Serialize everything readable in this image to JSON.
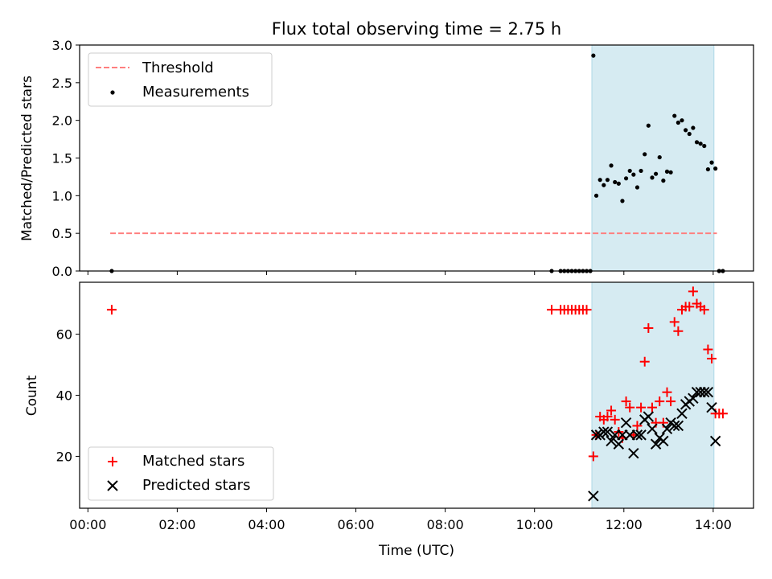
{
  "title": "Flux total observing time = 2.75 h",
  "colors": {
    "span": "#add8e6",
    "threshold": "#ff7f7f",
    "measurement": "#000000",
    "matched": "#ff0000",
    "predicted": "#000000"
  },
  "chart_data": [
    {
      "type": "scatter",
      "ylabel": "Matched/Predicted stars",
      "xlim": [
        "00:00",
        "15:00"
      ],
      "ylim": [
        0,
        3.0
      ],
      "yticks": [
        "0.0",
        "0.5",
        "1.0",
        "1.5",
        "2.0",
        "2.5",
        "3.0"
      ],
      "highlight_span": [
        "11:17",
        "14:01"
      ],
      "threshold": {
        "name": "Threshold",
        "value": 0.5,
        "x_range": [
          "00:30",
          "14:05"
        ]
      },
      "legend": {
        "placement": "upper-left",
        "entries": [
          "Threshold",
          "Measurements"
        ]
      },
      "series": [
        {
          "name": "Measurements",
          "x": [
            "00:32",
            "10:23",
            "10:35",
            "10:40",
            "10:45",
            "10:50",
            "10:55",
            "11:00",
            "11:05",
            "11:10",
            "11:15",
            "11:19",
            "11:23",
            "11:28",
            "11:33",
            "11:38",
            "11:43",
            "11:48",
            "11:53",
            "11:58",
            "12:03",
            "12:08",
            "12:13",
            "12:18",
            "12:23",
            "12:28",
            "12:33",
            "12:38",
            "12:43",
            "12:48",
            "12:53",
            "12:58",
            "13:03",
            "13:08",
            "13:13",
            "13:18",
            "13:23",
            "13:28",
            "13:33",
            "13:38",
            "13:43",
            "13:48",
            "13:53",
            "13:58",
            "14:03",
            "14:08",
            "14:13"
          ],
          "y": [
            0.0,
            0.0,
            0.0,
            0.0,
            0.0,
            0.0,
            0.0,
            0.0,
            0.0,
            0.0,
            0.0,
            2.86,
            1.0,
            1.21,
            1.14,
            1.21,
            1.4,
            1.18,
            1.16,
            0.93,
            1.23,
            1.33,
            1.28,
            1.11,
            1.33,
            1.55,
            1.93,
            1.24,
            1.29,
            1.51,
            1.2,
            1.32,
            1.31,
            2.06,
            1.97,
            2.0,
            1.87,
            1.82,
            1.9,
            1.71,
            1.69,
            1.66,
            1.35,
            1.44,
            1.36,
            0.0,
            0.0
          ]
        }
      ]
    },
    {
      "type": "scatter",
      "xlabel": "Time (UTC)",
      "ylabel": "Count",
      "xlim": [
        "00:00",
        "15:00"
      ],
      "ylim": [
        3,
        77
      ],
      "xticks": [
        "00:00",
        "02:00",
        "04:00",
        "06:00",
        "08:00",
        "10:00",
        "12:00",
        "14:00"
      ],
      "yticks": [
        "20",
        "40",
        "60"
      ],
      "highlight_span": [
        "11:17",
        "14:01"
      ],
      "legend": {
        "placement": "lower-left",
        "entries": [
          "Matched stars",
          "Predicted stars"
        ]
      },
      "series": [
        {
          "name": "Matched stars",
          "marker": "plus",
          "x": [
            "00:32",
            "10:23",
            "10:35",
            "10:40",
            "10:45",
            "10:50",
            "10:55",
            "11:00",
            "11:05",
            "11:10",
            "11:19",
            "11:23",
            "11:28",
            "11:33",
            "11:38",
            "11:43",
            "11:48",
            "11:53",
            "11:58",
            "12:03",
            "12:08",
            "12:13",
            "12:18",
            "12:23",
            "12:28",
            "12:33",
            "12:38",
            "12:43",
            "12:48",
            "12:53",
            "12:58",
            "13:03",
            "13:08",
            "13:13",
            "13:18",
            "13:23",
            "13:28",
            "13:33",
            "13:38",
            "13:43",
            "13:48",
            "13:53",
            "13:58",
            "14:03",
            "14:08",
            "14:13"
          ],
          "y": [
            68,
            68,
            68,
            68,
            68,
            68,
            68,
            68,
            68,
            68,
            20,
            27,
            33,
            32,
            33,
            35,
            32,
            28,
            26,
            38,
            36,
            27,
            30,
            36,
            51,
            62,
            36,
            31,
            38,
            31,
            41,
            38,
            64,
            61,
            68,
            69,
            69,
            74,
            70,
            69,
            68,
            55,
            52,
            34,
            34,
            34
          ]
        },
        {
          "name": "Predicted stars",
          "marker": "x",
          "x": [
            "11:19",
            "11:23",
            "11:28",
            "11:33",
            "11:38",
            "11:43",
            "11:48",
            "11:53",
            "11:58",
            "12:03",
            "12:08",
            "12:13",
            "12:18",
            "12:23",
            "12:28",
            "12:33",
            "12:38",
            "12:43",
            "12:48",
            "12:53",
            "12:58",
            "13:03",
            "13:08",
            "13:13",
            "13:18",
            "13:23",
            "13:28",
            "13:33",
            "13:38",
            "13:43",
            "13:48",
            "13:53",
            "13:58",
            "14:03"
          ],
          "y": [
            7,
            27,
            27,
            28,
            28,
            25,
            27,
            24,
            27,
            31,
            27,
            21,
            27,
            27,
            32,
            33,
            29,
            24,
            26,
            25,
            29,
            31,
            30,
            30,
            34,
            37,
            38,
            39,
            41,
            41,
            41,
            41,
            36,
            25
          ]
        }
      ]
    }
  ]
}
